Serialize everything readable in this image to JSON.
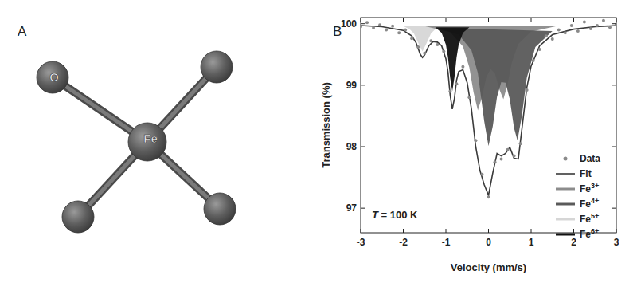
{
  "panel_labels": [
    "A",
    "B"
  ],
  "diagram": {
    "atoms": [
      "Fe",
      "O"
    ]
  },
  "chart_data": {
    "type": "line",
    "xlabel": "Velocity (mm/s)",
    "ylabel": "Transmission (%)",
    "annotations": [
      "T = 100 K"
    ],
    "xlim": [
      -3,
      3
    ],
    "xticks": [
      -3,
      -2,
      -1,
      0,
      1,
      2,
      3
    ],
    "ylim": [
      96.6,
      100.1
    ],
    "yticks": [
      97,
      98,
      99,
      100
    ],
    "legend": "right",
    "series": [
      {
        "name": "Data",
        "type": "scatter",
        "marker": "circle",
        "color": "#8a8a8a",
        "x": [
          -3,
          -2.85,
          -2.7,
          -2.55,
          -2.4,
          -2.25,
          -2.1,
          -1.95,
          -1.8,
          -1.65,
          -1.5,
          -1.35,
          -1.2,
          -1.05,
          -0.9,
          -0.75,
          -0.6,
          -0.45,
          -0.3,
          -0.15,
          0,
          0.15,
          0.3,
          0.45,
          0.6,
          0.75,
          0.9,
          1.05,
          1.2,
          1.35,
          1.5,
          1.65,
          1.8,
          1.95,
          2.1,
          2.25,
          2.4,
          2.55,
          2.7,
          2.85,
          3
        ],
        "values": [
          99.95,
          100.02,
          99.93,
          99.98,
          99.9,
          99.96,
          99.85,
          99.9,
          99.76,
          99.62,
          99.52,
          99.72,
          99.66,
          99.55,
          98.9,
          99.02,
          99.3,
          98.8,
          98.1,
          97.55,
          97.18,
          97.75,
          97.8,
          97.95,
          97.85,
          98.05,
          98.92,
          99.4,
          99.58,
          99.8,
          99.75,
          99.9,
          99.85,
          99.97,
          99.88,
          100.03,
          99.92,
          99.97,
          100.05,
          99.94,
          99.99
        ]
      },
      {
        "name": "Fit",
        "type": "line",
        "line_style": "solid",
        "color": "#3a3a3a",
        "x": [
          -3,
          -2.5,
          -2,
          -1.8,
          -1.7,
          -1.6,
          -1.55,
          -1.5,
          -1.4,
          -1.3,
          -1.2,
          -1.1,
          -1,
          -0.95,
          -0.9,
          -0.85,
          -0.8,
          -0.75,
          -0.7,
          -0.6,
          -0.5,
          -0.4,
          -0.3,
          -0.2,
          -0.1,
          0,
          0.1,
          0.2,
          0.3,
          0.4,
          0.5,
          0.6,
          0.7,
          0.8,
          0.9,
          1,
          1.2,
          1.5,
          2,
          2.5,
          3
        ],
        "values": [
          99.97,
          99.95,
          99.89,
          99.8,
          99.69,
          99.5,
          99.45,
          99.49,
          99.64,
          99.71,
          99.7,
          99.64,
          99.43,
          99.21,
          98.84,
          98.61,
          98.78,
          99.08,
          99.22,
          99.25,
          99.04,
          98.61,
          98.0,
          97.61,
          97.38,
          97.21,
          97.57,
          97.89,
          97.85,
          97.89,
          97.99,
          97.81,
          97.8,
          98.38,
          98.96,
          99.31,
          99.64,
          99.82,
          99.91,
          99.95,
          99.97
        ]
      },
      {
        "name": "Fe3+",
        "type": "area",
        "color": "#8c8c8c",
        "x": [
          -1.5,
          -0.9,
          -0.6,
          -0.45,
          -0.35,
          -0.25,
          -0.15,
          -0.05,
          0.05,
          0.15,
          0.25,
          0.35,
          0.45,
          0.55,
          0.7,
          1,
          1.6
        ],
        "values": [
          99.96,
          99.86,
          99.63,
          99.29,
          98.88,
          98.59,
          98.81,
          99.13,
          99.26,
          99.19,
          98.94,
          98.77,
          99.02,
          99.37,
          99.67,
          99.87,
          99.96
        ]
      },
      {
        "name": "Fe4+",
        "type": "area",
        "color": "#5a5a5a",
        "x": [
          -1.2,
          -0.7,
          -0.4,
          -0.25,
          -0.1,
          0,
          0.1,
          0.2,
          0.3,
          0.4,
          0.5,
          0.6,
          0.68,
          0.78,
          0.9,
          1.1,
          1.5
        ],
        "values": [
          99.93,
          99.82,
          99.57,
          99.2,
          98.41,
          98.01,
          98.33,
          98.81,
          99.05,
          99.04,
          98.77,
          98.3,
          98.1,
          98.49,
          99.12,
          99.62,
          99.88
        ]
      },
      {
        "name": "Fe5+",
        "type": "area",
        "color": "#d6d6d6",
        "x": [
          -2,
          -1.85,
          -1.75,
          -1.65,
          -1.55,
          -1.45,
          -1.35,
          -1.25,
          -1.1
        ],
        "values": [
          99.96,
          99.91,
          99.84,
          99.69,
          99.55,
          99.69,
          99.84,
          99.91,
          99.96
        ]
      },
      {
        "name": "Fe6+",
        "type": "area",
        "color": "#111111",
        "x": [
          -1.25,
          -1.1,
          -1,
          -0.95,
          -0.9,
          -0.85,
          -0.8,
          -0.75,
          -0.7,
          -0.6,
          -0.45
        ],
        "values": [
          99.94,
          99.85,
          99.66,
          99.45,
          99.12,
          98.9,
          99.12,
          99.45,
          99.66,
          99.85,
          99.94
        ]
      }
    ]
  }
}
